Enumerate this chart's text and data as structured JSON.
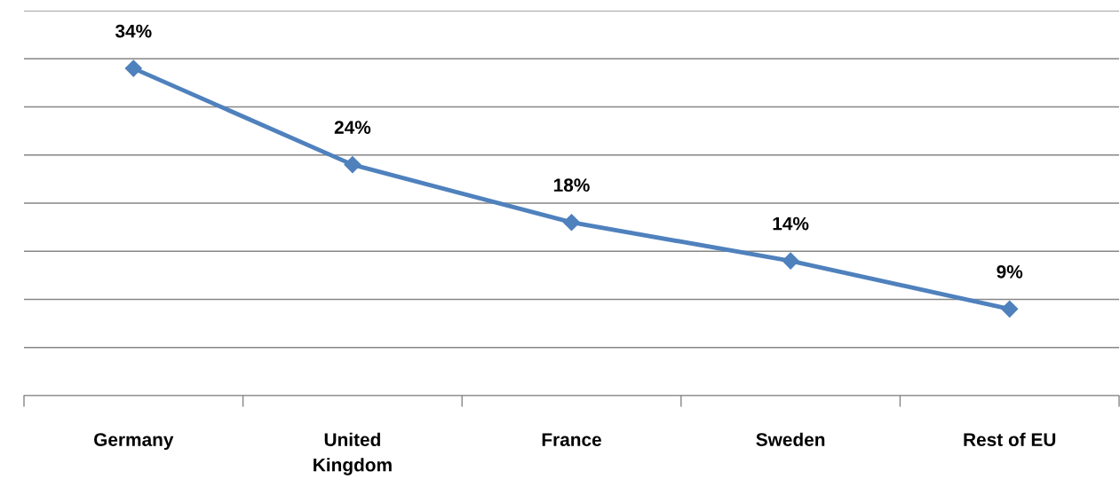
{
  "chart_data": {
    "type": "line",
    "categories": [
      "Germany",
      "United\nKingdom",
      "France",
      "Sweden",
      "Rest of EU"
    ],
    "series": [
      {
        "color": "#4f81bd",
        "values": [
          34,
          24,
          18,
          14,
          9
        ],
        "value_labels": [
          "34%",
          "24%",
          "18%",
          "14%",
          "9%"
        ]
      }
    ],
    "ylim": [
      0,
      40
    ],
    "yticks": [
      {
        "value": 0,
        "label": null
      },
      {
        "value": 5,
        "label": null
      },
      {
        "value": 10,
        "label": null
      },
      {
        "value": 15,
        "label": null
      },
      {
        "value": 20,
        "label": null
      },
      {
        "value": 25,
        "label": null
      },
      {
        "value": 30,
        "label": null
      },
      {
        "value": 35,
        "label": null
      },
      {
        "value": 40,
        "label": null
      }
    ],
    "tick_labels": "x",
    "grid": "y",
    "legend": false,
    "marker": "diamond",
    "line_style": "solid"
  }
}
